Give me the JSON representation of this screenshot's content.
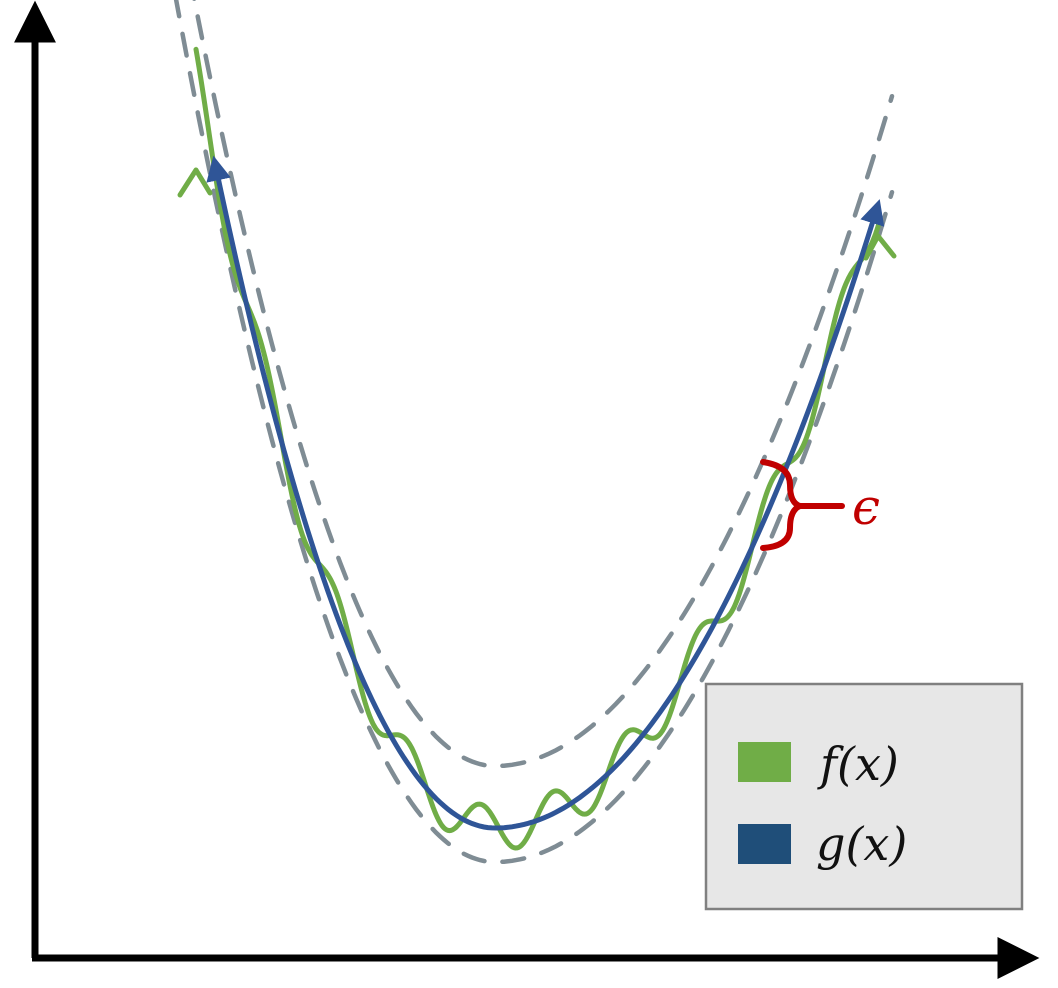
{
  "colors": {
    "f_curve": "#70ad47",
    "g_curve": "#2f5597",
    "band": "#7f8c94",
    "epsilon": "#c00000",
    "axes": "#000000",
    "legend_bg": "#e7e7e7",
    "legend_border": "#808080",
    "g_swatch": "#1f4e79"
  },
  "legend": {
    "items": [
      {
        "label": "f(x)",
        "color": "#70ad47"
      },
      {
        "label": "g(x)",
        "color": "#1f4e79"
      }
    ]
  },
  "annotation": {
    "epsilon": "ϵ"
  }
}
